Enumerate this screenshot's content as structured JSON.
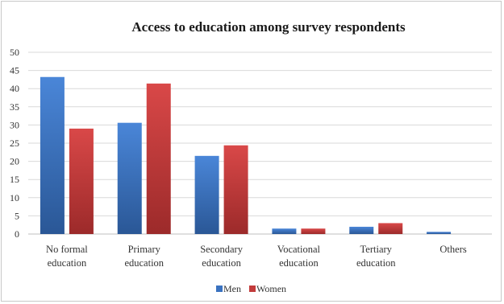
{
  "chart_data": {
    "type": "bar",
    "title": "Access to education among survey respondents",
    "categories": [
      [
        "No formal",
        "education"
      ],
      [
        "Primary",
        "education"
      ],
      [
        "Secondary",
        "education"
      ],
      [
        "Vocational",
        "education"
      ],
      [
        "Tertiary",
        "education"
      ],
      [
        "Others"
      ]
    ],
    "series": [
      {
        "name": "Men",
        "color": "#3a72c0",
        "values": [
          43.2,
          30.6,
          21.5,
          1.5,
          2.0,
          0.6
        ]
      },
      {
        "name": "Women",
        "color": "#c23b3b",
        "values": [
          29.0,
          41.4,
          24.4,
          1.5,
          3.0,
          0.0
        ]
      }
    ],
    "ylim": [
      0,
      50
    ],
    "yticks": [
      0,
      5,
      10,
      15,
      20,
      25,
      30,
      35,
      40,
      45,
      50
    ],
    "grid": true,
    "legend_position": "bottom"
  }
}
